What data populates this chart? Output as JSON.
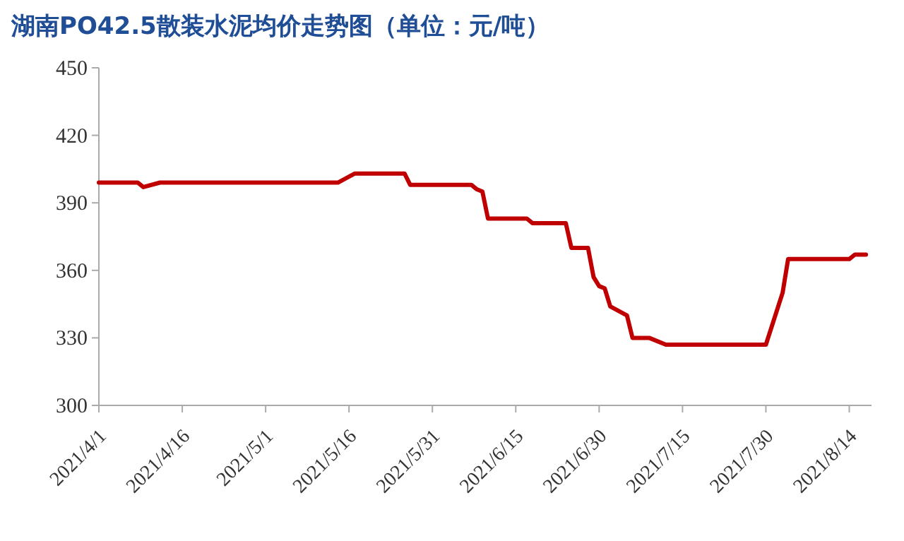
{
  "chart_data": {
    "type": "line",
    "title": "湖南PO42.5散装水泥均价走势图（单位：元/吨）",
    "x": [
      "2021-04-01",
      "2021-04-08",
      "2021-04-09",
      "2021-04-12",
      "2021-05-14",
      "2021-05-17",
      "2021-05-26",
      "2021-05-27",
      "2021-06-07",
      "2021-06-08",
      "2021-06-09",
      "2021-06-10",
      "2021-06-17",
      "2021-06-18",
      "2021-06-24",
      "2021-06-25",
      "2021-06-28",
      "2021-06-29",
      "2021-06-30",
      "2021-07-01",
      "2021-07-02",
      "2021-07-05",
      "2021-07-06",
      "2021-07-09",
      "2021-07-12",
      "2021-07-30",
      "2021-08-02",
      "2021-08-03",
      "2021-08-14",
      "2021-08-15",
      "2021-08-17"
    ],
    "series": [
      {
        "color": "#c00000",
        "values": [
          399,
          399,
          397,
          399,
          399,
          403,
          403,
          398,
          398,
          396,
          395,
          383,
          383,
          381,
          381,
          370,
          370,
          357,
          353,
          352,
          344,
          340,
          330,
          330,
          327,
          327,
          350,
          365,
          365,
          367,
          367
        ]
      }
    ],
    "xlim": [
      "2021-04-01",
      "2021-08-18"
    ],
    "xticks": [
      {
        "value": "2021-04-01",
        "label": "2021/4/1"
      },
      {
        "value": "2021-04-16",
        "label": "2021/4/16"
      },
      {
        "value": "2021-05-01",
        "label": "2021/5/1"
      },
      {
        "value": "2021-05-16",
        "label": "2021/5/16"
      },
      {
        "value": "2021-05-31",
        "label": "2021/5/31"
      },
      {
        "value": "2021-06-15",
        "label": "2021/6/15"
      },
      {
        "value": "2021-06-30",
        "label": "2021/6/30"
      },
      {
        "value": "2021-07-15",
        "label": "2021/7/15"
      },
      {
        "value": "2021-07-30",
        "label": "2021/7/30"
      },
      {
        "value": "2021-08-14",
        "label": "2021/8/14"
      }
    ],
    "ylim": [
      300,
      450
    ],
    "yticks": [
      300,
      330,
      360,
      390,
      420,
      450
    ],
    "grid": false,
    "marker": "none",
    "line_style": "solid"
  }
}
